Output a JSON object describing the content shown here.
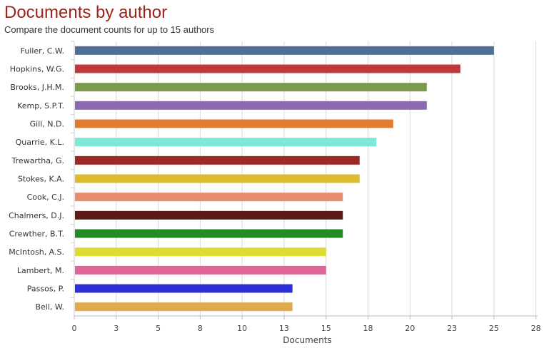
{
  "chart_data": {
    "type": "bar",
    "orientation": "horizontal",
    "title": "Documents by author",
    "subtitle": "Compare the document counts for up to 15 authors",
    "xlabel": "Documents",
    "ylabel": "",
    "xlim": [
      0,
      27.6
    ],
    "ticks": [
      "0",
      "3",
      "5",
      "8",
      "10",
      "13",
      "15",
      "18",
      "20",
      "23",
      "25",
      "28"
    ],
    "tick_values": [
      0,
      2.5,
      5,
      7.5,
      10,
      12.5,
      15,
      17.5,
      20,
      22.5,
      25,
      27.5
    ],
    "grid": true,
    "categories": [
      "Fuller, C.W.",
      "Hopkins, W.G.",
      "Brooks, J.H.M.",
      "Kemp, S.P.T.",
      "Gill, N.D.",
      "Quarrie, K.L.",
      "Trewartha, G.",
      "Stokes, K.A.",
      "Cook, C.J.",
      "Chalmers, D.J.",
      "Crewther, B.T.",
      "McIntosh, A.S.",
      "Lambert, M.",
      "Passos, P.",
      "Bell, W."
    ],
    "values": [
      25,
      23,
      21,
      21,
      19,
      18,
      17,
      17,
      16,
      16,
      16,
      15,
      15,
      13,
      13
    ],
    "colors": [
      "#4e6f96",
      "#c0393b",
      "#7a9c52",
      "#8f68b2",
      "#e07c32",
      "#7ee8d6",
      "#9b2a25",
      "#dcbb2e",
      "#e68d72",
      "#5c1b17",
      "#238a24",
      "#dcdc32",
      "#e0669a",
      "#2e2fd6",
      "#e0aa4c"
    ]
  }
}
